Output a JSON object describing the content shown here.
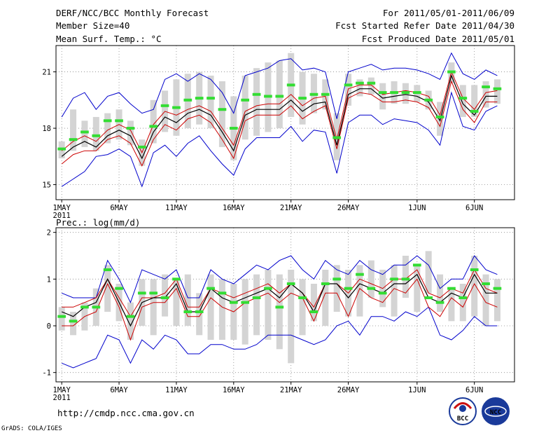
{
  "header": {
    "title": "DERF/NCC/BCC Monthly Forecast",
    "member_size": "Member Size=40",
    "variable": "Mean Surf. Temp.: °C",
    "period": "For 2011/05/01-2011/06/09",
    "fcst_started": "Fcst Started Refer Date 2011/04/30",
    "fcst_produced": "Fcst Produced Date 2011/05/01"
  },
  "footer": {
    "url": "http://cmdp.ncc.cma.gov.cn",
    "credit": "GrADS: COLA/IGES",
    "logo_bcc": "BCC",
    "logo_ncc": "NCC"
  },
  "colors": {
    "box": "#d4d4d4",
    "upper_lower": "#0000cc",
    "spread": "#cc0000",
    "mean": "#000000",
    "obs": "#33dd33",
    "grid": "#888888"
  },
  "chart_data": [
    {
      "type": "box-ensemble",
      "title": "Mean Surf. Temp.: °C",
      "x_start_label": "2011",
      "x_tick_labels": [
        "1MAY",
        "6MAY",
        "11MAY",
        "16MAY",
        "21MAY",
        "26MAY",
        "1JUN",
        "6JUN"
      ],
      "x_tick_days": [
        1,
        6,
        11,
        16,
        21,
        26,
        32,
        37
      ],
      "xlim": [
        0.5,
        40.5
      ],
      "ylim": [
        14.2,
        22.4
      ],
      "y_ticks": [
        15,
        18,
        21
      ],
      "y_tick_labels": [
        "15",
        "18",
        "21"
      ],
      "days": [
        1,
        2,
        3,
        4,
        5,
        6,
        7,
        8,
        9,
        10,
        11,
        12,
        13,
        14,
        15,
        16,
        17,
        18,
        19,
        20,
        21,
        22,
        23,
        24,
        25,
        26,
        27,
        28,
        29,
        30,
        31,
        32,
        33,
        34,
        35,
        36,
        37,
        38,
        39
      ],
      "box_low": [
        16.4,
        16.8,
        17.0,
        16.8,
        17.2,
        17.4,
        17.1,
        16.0,
        17.2,
        17.8,
        17.6,
        18.0,
        18.2,
        18.0,
        17.0,
        16.3,
        17.4,
        17.6,
        17.8,
        18.0,
        18.6,
        18.2,
        18.8,
        19.0,
        16.3,
        19.2,
        19.7,
        19.8,
        19.0,
        19.3,
        19.3,
        19.4,
        19.0,
        17.6,
        20.4,
        18.6,
        18.6,
        19.1,
        19.3
      ],
      "box_high": [
        17.3,
        19.0,
        18.4,
        18.6,
        18.8,
        19.0,
        18.4,
        17.4,
        19.5,
        20.0,
        20.6,
        20.9,
        21.0,
        20.8,
        20.5,
        19.7,
        20.8,
        21.2,
        21.5,
        21.6,
        22.0,
        21.0,
        20.9,
        20.6,
        18.8,
        20.9,
        20.6,
        20.7,
        20.4,
        20.5,
        20.4,
        20.3,
        20.0,
        19.4,
        21.5,
        20.3,
        20.3,
        20.5,
        20.6
      ],
      "upper": [
        18.6,
        19.6,
        19.9,
        19.0,
        19.7,
        19.9,
        19.3,
        18.8,
        19.0,
        20.6,
        20.9,
        20.5,
        20.9,
        20.6,
        19.9,
        18.8,
        20.8,
        21.0,
        21.2,
        21.6,
        21.7,
        21.1,
        21.2,
        21.0,
        18.5,
        21.0,
        21.2,
        21.4,
        21.1,
        21.2,
        21.2,
        21.1,
        20.9,
        20.6,
        22.0,
        20.9,
        20.6,
        21.1,
        20.8
      ],
      "lower": [
        14.9,
        15.3,
        15.7,
        16.5,
        16.6,
        16.9,
        16.5,
        14.9,
        16.7,
        17.1,
        16.5,
        17.2,
        17.6,
        16.8,
        16.1,
        15.5,
        16.9,
        17.5,
        17.5,
        17.5,
        18.1,
        17.3,
        17.9,
        17.8,
        15.6,
        18.3,
        18.7,
        18.7,
        18.2,
        18.5,
        18.4,
        18.3,
        17.9,
        17.1,
        19.9,
        18.1,
        17.9,
        18.9,
        19.2
      ],
      "spread_high": [
        16.8,
        17.3,
        17.6,
        17.3,
        17.9,
        18.2,
        17.9,
        16.7,
        18.2,
        18.9,
        18.7,
        19.0,
        19.2,
        18.9,
        18.0,
        17.1,
        18.9,
        19.2,
        19.3,
        19.3,
        19.8,
        19.2,
        19.6,
        19.7,
        17.4,
        20.1,
        20.3,
        20.3,
        19.8,
        19.9,
        20.0,
        19.9,
        19.7,
        18.7,
        21.0,
        19.6,
        19.0,
        19.9,
        20.0
      ],
      "mean": [
        16.5,
        17.0,
        17.3,
        17.0,
        17.6,
        17.9,
        17.6,
        16.4,
        17.8,
        18.6,
        18.3,
        18.8,
        19.0,
        18.7,
        17.8,
        16.8,
        18.7,
        19.0,
        19.0,
        19.0,
        19.5,
        18.9,
        19.3,
        19.4,
        17.1,
        19.8,
        20.1,
        20.1,
        19.6,
        19.7,
        19.8,
        19.7,
        19.4,
        18.4,
        20.8,
        19.3,
        18.7,
        19.7,
        19.7
      ],
      "spread_low": [
        16.1,
        16.6,
        16.8,
        16.8,
        17.4,
        17.6,
        17.2,
        16.0,
        17.4,
        18.2,
        17.9,
        18.5,
        18.7,
        18.3,
        17.4,
        16.4,
        18.4,
        18.7,
        18.7,
        18.7,
        19.2,
        18.5,
        18.9,
        19.2,
        16.9,
        19.6,
        19.9,
        19.8,
        19.4,
        19.4,
        19.5,
        19.4,
        19.1,
        18.1,
        20.5,
        19.0,
        18.3,
        19.4,
        19.4
      ],
      "observed": [
        16.9,
        17.4,
        17.8,
        17.6,
        18.4,
        18.4,
        18.0,
        17.0,
        18.1,
        19.2,
        19.1,
        19.5,
        19.6,
        19.6,
        19.0,
        18.0,
        19.5,
        19.8,
        19.7,
        19.7,
        20.3,
        19.6,
        19.8,
        19.8,
        17.5,
        20.3,
        20.4,
        20.4,
        19.9,
        19.9,
        19.9,
        19.9,
        19.5,
        18.6,
        21.0,
        19.6,
        18.9,
        20.2,
        20.1
      ]
    },
    {
      "type": "box-ensemble",
      "title": "Prec.: log(mm/d)",
      "x_start_label": "2011",
      "x_tick_labels": [
        "1MAY",
        "6MAY",
        "11MAY",
        "16MAY",
        "21MAY",
        "26MAY",
        "1JUN",
        "6JUN"
      ],
      "x_tick_days": [
        1,
        6,
        11,
        16,
        21,
        26,
        32,
        37
      ],
      "xlim": [
        0.5,
        40.5
      ],
      "ylim": [
        -1.2,
        2.1
      ],
      "y_ticks": [
        -1,
        0,
        1,
        2
      ],
      "y_tick_labels": [
        "-1",
        "0",
        "1",
        "2"
      ],
      "days": [
        1,
        2,
        3,
        4,
        5,
        6,
        7,
        8,
        9,
        10,
        11,
        12,
        13,
        14,
        15,
        16,
        17,
        18,
        19,
        20,
        21,
        22,
        23,
        24,
        25,
        26,
        27,
        28,
        29,
        30,
        31,
        32,
        33,
        34,
        35,
        36,
        37,
        38,
        39
      ],
      "box_low": [
        -0.1,
        -0.2,
        -0.1,
        0.0,
        0.3,
        0.1,
        -0.3,
        0.0,
        -0.2,
        0.2,
        0.0,
        0.0,
        -0.2,
        -0.3,
        -0.3,
        -0.3,
        -0.4,
        -0.2,
        -0.3,
        -0.5,
        -0.8,
        -0.2,
        0.1,
        0.0,
        0.3,
        0.2,
        0.2,
        0.6,
        0.4,
        0.2,
        0.6,
        0.3,
        0.7,
        0.3,
        0.1,
        0.1,
        0.2,
        0.0,
        0.1
      ],
      "box_high": [
        0.4,
        0.3,
        0.5,
        0.8,
        1.3,
        0.9,
        0.5,
        1.0,
        1.0,
        1.1,
        1.0,
        1.1,
        0.7,
        1.1,
        1.0,
        0.9,
        1.0,
        1.1,
        1.2,
        1.1,
        1.2,
        1.0,
        0.9,
        1.2,
        1.3,
        1.2,
        1.3,
        1.4,
        1.2,
        1.3,
        1.5,
        1.3,
        1.6,
        1.1,
        0.8,
        0.9,
        1.5,
        1.1,
        1.0
      ],
      "upper": [
        0.7,
        0.6,
        0.6,
        0.6,
        1.4,
        1.0,
        0.5,
        1.2,
        1.1,
        1.0,
        1.2,
        0.6,
        0.6,
        1.2,
        1.0,
        0.9,
        1.1,
        1.3,
        1.2,
        1.4,
        1.5,
        1.2,
        1.0,
        1.4,
        1.2,
        1.1,
        1.4,
        1.2,
        1.1,
        1.3,
        1.3,
        1.5,
        1.3,
        0.8,
        1.0,
        1.0,
        1.5,
        1.2,
        1.1
      ],
      "lower": [
        -0.8,
        -0.9,
        -0.8,
        -0.7,
        -0.2,
        -0.3,
        -0.8,
        -0.3,
        -0.5,
        -0.2,
        -0.3,
        -0.6,
        -0.6,
        -0.4,
        -0.4,
        -0.5,
        -0.5,
        -0.4,
        -0.2,
        -0.2,
        -0.2,
        -0.3,
        -0.4,
        -0.3,
        0.0,
        0.1,
        -0.2,
        0.2,
        0.2,
        0.1,
        0.3,
        0.2,
        0.4,
        -0.2,
        -0.3,
        -0.1,
        0.2,
        0.0,
        0.0
      ],
      "spread_high": [
        0.4,
        0.4,
        0.5,
        0.6,
        1.0,
        0.6,
        0.2,
        0.6,
        0.6,
        0.7,
        1.0,
        0.4,
        0.4,
        0.8,
        0.7,
        0.6,
        0.7,
        0.8,
        0.9,
        0.7,
        0.9,
        0.7,
        0.4,
        0.9,
        0.9,
        0.7,
        1.0,
        0.9,
        0.8,
        1.0,
        1.0,
        1.2,
        0.7,
        0.6,
        0.8,
        0.7,
        1.2,
        0.8,
        0.7
      ],
      "mean": [
        0.3,
        0.2,
        0.4,
        0.5,
        1.0,
        0.5,
        0.0,
        0.5,
        0.6,
        0.6,
        0.9,
        0.3,
        0.3,
        0.8,
        0.6,
        0.5,
        0.6,
        0.7,
        0.8,
        0.6,
        0.9,
        0.7,
        0.3,
        0.9,
        0.9,
        0.6,
        0.9,
        0.8,
        0.7,
        0.9,
        0.9,
        1.1,
        0.6,
        0.5,
        0.7,
        0.6,
        1.1,
        0.7,
        0.7
      ],
      "spread_low": [
        0.0,
        0.0,
        0.2,
        0.3,
        0.9,
        0.4,
        -0.3,
        0.4,
        0.5,
        0.5,
        0.8,
        0.2,
        0.2,
        0.6,
        0.4,
        0.3,
        0.5,
        0.6,
        0.7,
        0.5,
        0.7,
        0.6,
        0.1,
        0.7,
        0.7,
        0.2,
        0.8,
        0.6,
        0.5,
        0.8,
        0.7,
        1.0,
        0.4,
        0.2,
        0.6,
        0.4,
        0.9,
        0.5,
        0.4
      ],
      "observed": [
        0.2,
        0.1,
        0.4,
        0.4,
        1.2,
        0.8,
        0.2,
        0.7,
        0.7,
        0.6,
        1.0,
        0.3,
        0.3,
        0.8,
        0.7,
        0.5,
        0.5,
        0.6,
        0.8,
        0.4,
        0.9,
        0.6,
        0.3,
        0.9,
        1.0,
        0.8,
        1.1,
        0.8,
        0.7,
        1.0,
        1.0,
        1.3,
        0.6,
        0.5,
        0.8,
        0.6,
        1.2,
        0.9,
        0.8
      ]
    }
  ]
}
